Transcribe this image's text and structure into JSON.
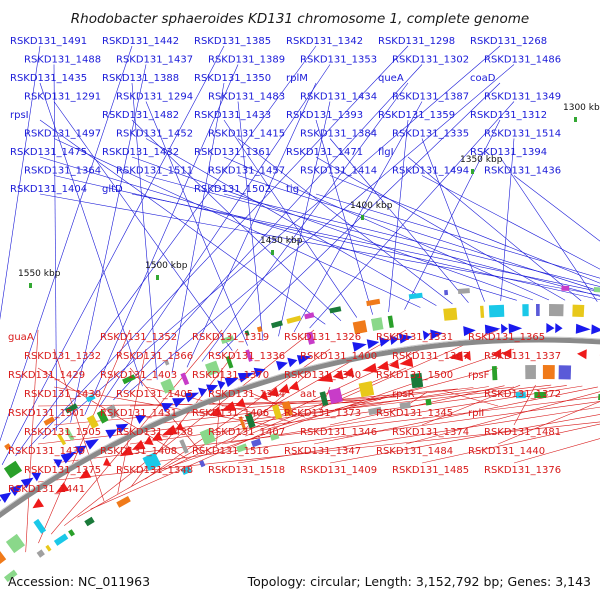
{
  "title": "Rhodobacter sphaeroides KD131 chromosome 1, complete genome",
  "footer": {
    "accession": "Accession: NC_011963",
    "summary": "Topology: circular; Length: 3,152,792 bp; Genes: 3,143"
  },
  "colors": {
    "forward_label": "#1a1ad8",
    "reverse_label": "#d81a1a",
    "forward_gene": "#1a1aee",
    "reverse_gene": "#ee1a1a",
    "backbone": "#8a8a8a",
    "gc_marker": "#33a833"
  },
  "ticks": [
    "1550 kbp",
    "1500 kbp",
    "1450 kbp",
    "1400 kbp",
    "1350 kbp",
    "1300 kbp"
  ],
  "forward_genes": [
    "RSKD131_1491",
    "RSKD131_1442",
    "RSKD131_1385",
    "RSKD131_1342",
    "RSKD131_1298",
    "RSKD131_1268",
    "RSKD131_1488",
    "RSKD131_1437",
    "RSKD131_1389",
    "RSKD131_1353",
    "RSKD131_1302",
    "RSKD131_1486",
    "RSKD131_1435",
    "RSKD131_1388",
    "RSKD131_1350",
    "rplM",
    "queA",
    "coaD",
    "RSKD131_1291",
    "RSKD131_1294",
    "RSKD131_1483",
    "RSKD131_1434",
    "RSKD131_1387",
    "RSKD131_1349",
    "rpsI",
    "RSKD131_1482",
    "RSKD131_1433",
    "RSKD131_1393",
    "RSKD131_1359",
    "RSKD131_1312",
    "RSKD131_1497",
    "RSKD131_1452",
    "RSKD131_1415",
    "RSKD131_1384",
    "RSKD131_1335",
    "RSKD131_1514",
    "RSKD131_1475",
    "RSKD131_1432",
    "RSKD131_1361",
    "RSKD131_1471",
    "flgI",
    "RSKD131_1394",
    "RSKD131_1364",
    "RSKD131_1511",
    "RSKD131_1457",
    "RSKD131_1414",
    "RSKD131_1494",
    "RSKD131_1436",
    "RSKD131_1404",
    "gltD",
    "RSKD131_1502",
    "tig"
  ],
  "reverse_genes": [
    "guaA",
    "RSKD131_1352",
    "RSKD131_1319",
    "RSKD131_1326",
    "RSKD131_1331",
    "RSKD131_1365",
    "RSKD131_1332",
    "RSKD131_1366",
    "RSKD131_1336",
    "RSKD131_1400",
    "RSKD131_1367",
    "RSKD131_1337",
    "RSKD131_1429",
    "RSKD131_1403",
    "RSKD131_1370",
    "RSKD131_1340",
    "RSKD131_1500",
    "rpsF",
    "RSKD131_1430",
    "RSKD131_1405",
    "RSKD131_1344",
    "aat",
    "rpsR",
    "RSKD131_1372",
    "RSKD131_1501",
    "RSKD131_1431",
    "RSKD131_1406",
    "RSKD131_1373",
    "RSKD131_1345",
    "rplI",
    "RSKD131_1505",
    "RSKD131_1438",
    "RSKD131_1407",
    "RSKD131_1346",
    "RSKD131_1374",
    "RSKD131_1481",
    "RSKD131_1439",
    "RSKD131_1408",
    "RSKD131_1516",
    "RSKD131_1347",
    "RSKD131_1484",
    "RSKD131_1440",
    "RSKD131_1375",
    "RSKD131_1348",
    "RSKD131_1518",
    "RSKD131_1409",
    "RSKD131_1485",
    "RSKD131_1376",
    "RSKD131_1441"
  ]
}
